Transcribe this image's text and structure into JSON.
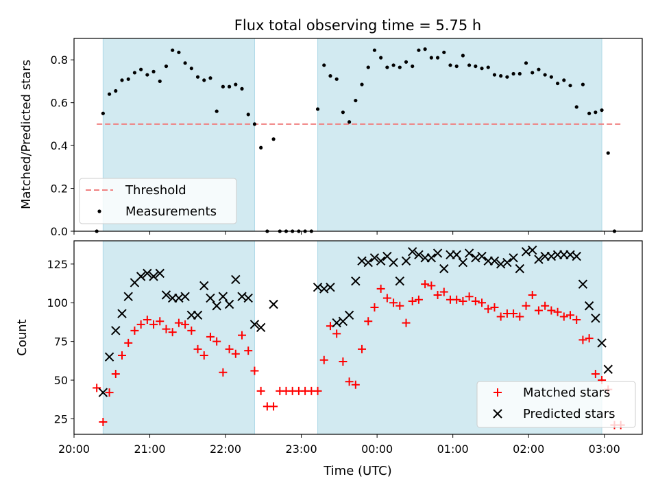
{
  "chart_data": [
    {
      "type": "scatter",
      "title": "Flux total observing time = 5.75 h",
      "ylabel": "Matched/Predicted stars",
      "xlabel": "",
      "ylim": [
        0,
        0.9
      ],
      "xlim": [
        "20:00",
        "03:30"
      ],
      "x_ticks": [
        "20:00",
        "21:00",
        "22:00",
        "23:00",
        "00:00",
        "01:00",
        "02:00",
        "03:00"
      ],
      "y_ticks": [
        "0.0",
        "0.2",
        "0.4",
        "0.6",
        "0.8"
      ],
      "shaded_intervals": [
        [
          "20:23",
          "22:23"
        ],
        [
          "23:13",
          "02:58"
        ]
      ],
      "threshold": 0.5,
      "legend_position": "lower left",
      "legend": [
        "Threshold",
        "Measurements"
      ],
      "series": [
        {
          "name": "Measurements",
          "color": "#000000",
          "points": [
            [
              "20:18",
              0.0
            ],
            [
              "20:23",
              0.55
            ],
            [
              "20:28",
              0.64
            ],
            [
              "20:33",
              0.655
            ],
            [
              "20:38",
              0.705
            ],
            [
              "20:43",
              0.71
            ],
            [
              "20:48",
              0.74
            ],
            [
              "20:53",
              0.755
            ],
            [
              "20:58",
              0.73
            ],
            [
              "21:03",
              0.745
            ],
            [
              "21:08",
              0.7
            ],
            [
              "21:13",
              0.77
            ],
            [
              "21:18",
              0.845
            ],
            [
              "21:23",
              0.835
            ],
            [
              "21:28",
              0.785
            ],
            [
              "21:33",
              0.76
            ],
            [
              "21:38",
              0.72
            ],
            [
              "21:43",
              0.705
            ],
            [
              "21:48",
              0.715
            ],
            [
              "21:53",
              0.56
            ],
            [
              "21:58",
              0.675
            ],
            [
              "22:03",
              0.675
            ],
            [
              "22:08",
              0.685
            ],
            [
              "22:13",
              0.665
            ],
            [
              "22:18",
              0.545
            ],
            [
              "22:23",
              0.5
            ],
            [
              "22:28",
              0.39
            ],
            [
              "22:33",
              0.0
            ],
            [
              "22:38",
              0.43
            ],
            [
              "22:43",
              0.0
            ],
            [
              "22:48",
              0.0
            ],
            [
              "22:53",
              0.0
            ],
            [
              "22:58",
              0.0
            ],
            [
              "23:03",
              0.0
            ],
            [
              "23:08",
              0.0
            ],
            [
              "23:13",
              0.57
            ],
            [
              "23:18",
              0.775
            ],
            [
              "23:23",
              0.725
            ],
            [
              "23:28",
              0.71
            ],
            [
              "23:33",
              0.555
            ],
            [
              "23:38",
              0.51
            ],
            [
              "23:43",
              0.61
            ],
            [
              "23:48",
              0.685
            ],
            [
              "23:53",
              0.765
            ],
            [
              "23:58",
              0.845
            ],
            [
              "00:03",
              0.81
            ],
            [
              "00:08",
              0.765
            ],
            [
              "00:13",
              0.775
            ],
            [
              "00:18",
              0.765
            ],
            [
              "00:23",
              0.79
            ],
            [
              "00:28",
              0.77
            ],
            [
              "00:33",
              0.845
            ],
            [
              "00:38",
              0.85
            ],
            [
              "00:43",
              0.81
            ],
            [
              "00:48",
              0.81
            ],
            [
              "00:53",
              0.835
            ],
            [
              "00:58",
              0.775
            ],
            [
              "01:03",
              0.77
            ],
            [
              "01:08",
              0.82
            ],
            [
              "01:13",
              0.775
            ],
            [
              "01:18",
              0.77
            ],
            [
              "01:23",
              0.76
            ],
            [
              "01:28",
              0.765
            ],
            [
              "01:33",
              0.73
            ],
            [
              "01:38",
              0.725
            ],
            [
              "01:43",
              0.72
            ],
            [
              "01:48",
              0.735
            ],
            [
              "01:53",
              0.735
            ],
            [
              "01:58",
              0.785
            ],
            [
              "02:03",
              0.74
            ],
            [
              "02:08",
              0.755
            ],
            [
              "02:13",
              0.73
            ],
            [
              "02:18",
              0.72
            ],
            [
              "02:23",
              0.69
            ],
            [
              "02:28",
              0.705
            ],
            [
              "02:33",
              0.68
            ],
            [
              "02:38",
              0.58
            ],
            [
              "02:43",
              0.685
            ],
            [
              "02:48",
              0.55
            ],
            [
              "02:53",
              0.555
            ],
            [
              "02:58",
              0.565
            ],
            [
              "03:03",
              0.365
            ],
            [
              "03:08",
              0.0
            ]
          ]
        }
      ]
    },
    {
      "type": "scatter",
      "title": "",
      "ylabel": "Count",
      "xlabel": "Time (UTC)",
      "ylim": [
        15,
        140
      ],
      "xlim": [
        "20:00",
        "03:30"
      ],
      "x_ticks": [
        "20:00",
        "21:00",
        "22:00",
        "23:00",
        "00:00",
        "01:00",
        "02:00",
        "03:00"
      ],
      "y_ticks": [
        "25",
        "50",
        "75",
        "100",
        "125"
      ],
      "shaded_intervals": [
        [
          "20:23",
          "22:23"
        ],
        [
          "23:13",
          "02:58"
        ]
      ],
      "legend_position": "lower right",
      "legend": [
        "Matched stars",
        "Predicted stars"
      ],
      "series": [
        {
          "name": "Matched stars",
          "marker": "+",
          "color": "#ff0000",
          "points": [
            [
              "20:18",
              45
            ],
            [
              "20:23",
              23
            ],
            [
              "20:28",
              42
            ],
            [
              "20:33",
              54
            ],
            [
              "20:38",
              66
            ],
            [
              "20:43",
              74
            ],
            [
              "20:48",
              82
            ],
            [
              "20:53",
              86
            ],
            [
              "20:58",
              89
            ],
            [
              "21:03",
              86
            ],
            [
              "21:08",
              88
            ],
            [
              "21:13",
              83
            ],
            [
              "21:18",
              81
            ],
            [
              "21:23",
              87
            ],
            [
              "21:28",
              86
            ],
            [
              "21:33",
              82
            ],
            [
              "21:38",
              70
            ],
            [
              "21:43",
              66
            ],
            [
              "21:48",
              78
            ],
            [
              "21:53",
              75
            ],
            [
              "21:58",
              55
            ],
            [
              "22:03",
              70
            ],
            [
              "22:08",
              67
            ],
            [
              "22:13",
              79
            ],
            [
              "22:18",
              69
            ],
            [
              "22:23",
              56
            ],
            [
              "22:28",
              43
            ],
            [
              "22:33",
              33
            ],
            [
              "22:38",
              33
            ],
            [
              "22:43",
              43
            ],
            [
              "22:48",
              43
            ],
            [
              "22:53",
              43
            ],
            [
              "22:58",
              43
            ],
            [
              "23:03",
              43
            ],
            [
              "23:08",
              43
            ],
            [
              "23:13",
              43
            ],
            [
              "23:18",
              63
            ],
            [
              "23:23",
              85
            ],
            [
              "23:28",
              80
            ],
            [
              "23:33",
              62
            ],
            [
              "23:38",
              49
            ],
            [
              "23:43",
              47
            ],
            [
              "23:48",
              70
            ],
            [
              "23:53",
              88
            ],
            [
              "23:58",
              97
            ],
            [
              "00:03",
              109
            ],
            [
              "00:08",
              103
            ],
            [
              "00:13",
              100
            ],
            [
              "00:18",
              98
            ],
            [
              "00:23",
              87
            ],
            [
              "00:28",
              101
            ],
            [
              "00:33",
              102
            ],
            [
              "00:38",
              112
            ],
            [
              "00:43",
              111
            ],
            [
              "00:48",
              105
            ],
            [
              "00:53",
              107
            ],
            [
              "00:58",
              102
            ],
            [
              "01:03",
              102
            ],
            [
              "01:08",
              101
            ],
            [
              "01:13",
              104
            ],
            [
              "01:18",
              101
            ],
            [
              "01:23",
              100
            ],
            [
              "01:28",
              96
            ],
            [
              "01:33",
              97
            ],
            [
              "01:38",
              91
            ],
            [
              "01:43",
              93
            ],
            [
              "01:48",
              93
            ],
            [
              "01:53",
              91
            ],
            [
              "01:58",
              98
            ],
            [
              "02:03",
              105
            ],
            [
              "02:08",
              95
            ],
            [
              "02:13",
              98
            ],
            [
              "02:18",
              95
            ],
            [
              "02:23",
              94
            ],
            [
              "02:28",
              91
            ],
            [
              "02:33",
              92
            ],
            [
              "02:38",
              89
            ],
            [
              "02:43",
              76
            ],
            [
              "02:48",
              77
            ],
            [
              "02:53",
              54
            ],
            [
              "02:58",
              50
            ],
            [
              "03:03",
              44
            ],
            [
              "03:08",
              21
            ],
            [
              "03:13",
              21
            ]
          ]
        },
        {
          "name": "Predicted stars",
          "marker": "x",
          "color": "#000000",
          "points": [
            [
              "20:23",
              42
            ],
            [
              "20:28",
              65
            ],
            [
              "20:33",
              82
            ],
            [
              "20:38",
              93
            ],
            [
              "20:43",
              104
            ],
            [
              "20:48",
              113
            ],
            [
              "20:53",
              117
            ],
            [
              "20:58",
              119
            ],
            [
              "21:03",
              117
            ],
            [
              "21:08",
              119
            ],
            [
              "21:13",
              105
            ],
            [
              "21:18",
              103
            ],
            [
              "21:23",
              103
            ],
            [
              "21:28",
              104
            ],
            [
              "21:33",
              92
            ],
            [
              "21:38",
              92
            ],
            [
              "21:43",
              111
            ],
            [
              "21:48",
              103
            ],
            [
              "21:53",
              98
            ],
            [
              "21:58",
              104
            ],
            [
              "22:03",
              99
            ],
            [
              "22:08",
              115
            ],
            [
              "22:13",
              104
            ],
            [
              "22:18",
              103
            ],
            [
              "22:23",
              86
            ],
            [
              "22:28",
              84
            ],
            [
              "22:38",
              99
            ],
            [
              "23:13",
              110
            ],
            [
              "23:18",
              109
            ],
            [
              "23:23",
              110
            ],
            [
              "23:28",
              87
            ],
            [
              "23:33",
              88
            ],
            [
              "23:38",
              92
            ],
            [
              "23:43",
              114
            ],
            [
              "23:48",
              127
            ],
            [
              "23:53",
              126
            ],
            [
              "23:58",
              129
            ],
            [
              "00:03",
              127
            ],
            [
              "00:08",
              130
            ],
            [
              "00:13",
              126
            ],
            [
              "00:18",
              114
            ],
            [
              "00:23",
              127
            ],
            [
              "00:28",
              133
            ],
            [
              "00:33",
              131
            ],
            [
              "00:38",
              129
            ],
            [
              "00:43",
              129
            ],
            [
              "00:48",
              132
            ],
            [
              "00:53",
              122
            ],
            [
              "00:58",
              131
            ],
            [
              "01:03",
              131
            ],
            [
              "01:08",
              126
            ],
            [
              "01:13",
              132
            ],
            [
              "01:18",
              129
            ],
            [
              "01:23",
              130
            ],
            [
              "01:28",
              127
            ],
            [
              "01:33",
              127
            ],
            [
              "01:38",
              125
            ],
            [
              "01:43",
              126
            ],
            [
              "01:48",
              129
            ],
            [
              "01:53",
              122
            ],
            [
              "01:58",
              133
            ],
            [
              "02:03",
              134
            ],
            [
              "02:08",
              128
            ],
            [
              "02:13",
              130
            ],
            [
              "02:18",
              130
            ],
            [
              "02:23",
              131
            ],
            [
              "02:28",
              131
            ],
            [
              "02:33",
              131
            ],
            [
              "02:38",
              130
            ],
            [
              "02:43",
              112
            ],
            [
              "02:48",
              98
            ],
            [
              "02:53",
              90
            ],
            [
              "02:58",
              74
            ],
            [
              "03:03",
              57
            ]
          ]
        }
      ]
    }
  ],
  "colors": {
    "shade": "#add8e6",
    "threshold": "#f08080",
    "matched": "#ff0000",
    "predicted": "#000000"
  }
}
